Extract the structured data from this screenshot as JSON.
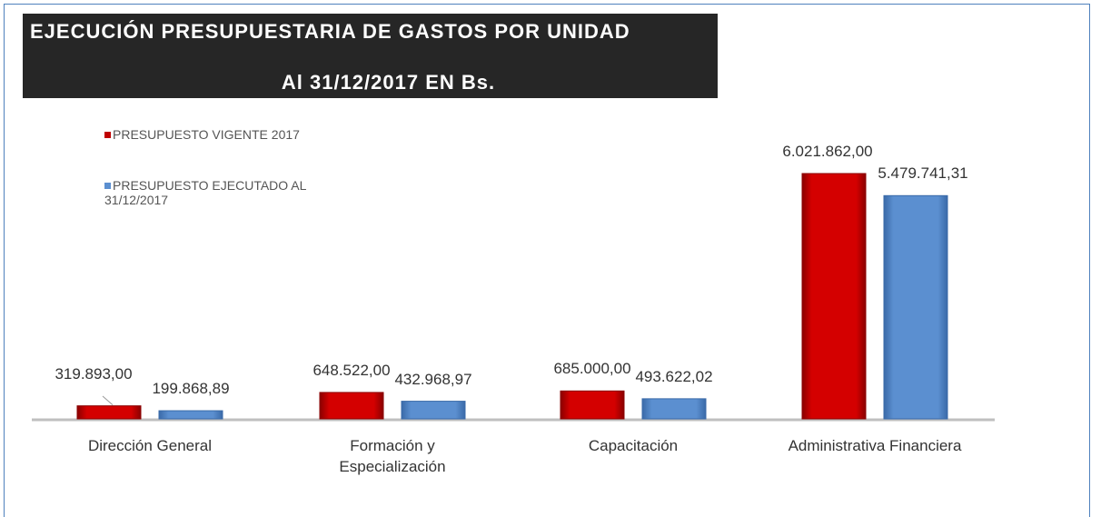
{
  "chart_data": {
    "type": "bar",
    "title": "EJECUCIÓN PRESUPUESTARIA DE GASTOS POR UNIDAD",
    "subtitle": "Al 31/12/2017 EN Bs.",
    "categories": [
      "Dirección General",
      "Formación y Especialización",
      "Capacitación",
      "Administrativa Financiera"
    ],
    "series": [
      {
        "name": "PRESUPUESTO VIGENTE 2017",
        "color": "#c00000",
        "values": [
          319893.0,
          648522.0,
          685000.0,
          6021862.0
        ],
        "value_labels": [
          "319.893,00",
          "648.522,00",
          "685.000,00",
          "6.021.862,00"
        ]
      },
      {
        "name": "PRESUPUESTO EJECUTADO AL 31/12/2017",
        "color": "#5b8fd0",
        "values": [
          199868.89,
          432968.97,
          493622.02,
          5479741.31
        ],
        "value_labels": [
          "199.868,89",
          "432.968,97",
          "493.622,02",
          "5.479.741,31"
        ]
      }
    ],
    "legend": "top-left"
  }
}
